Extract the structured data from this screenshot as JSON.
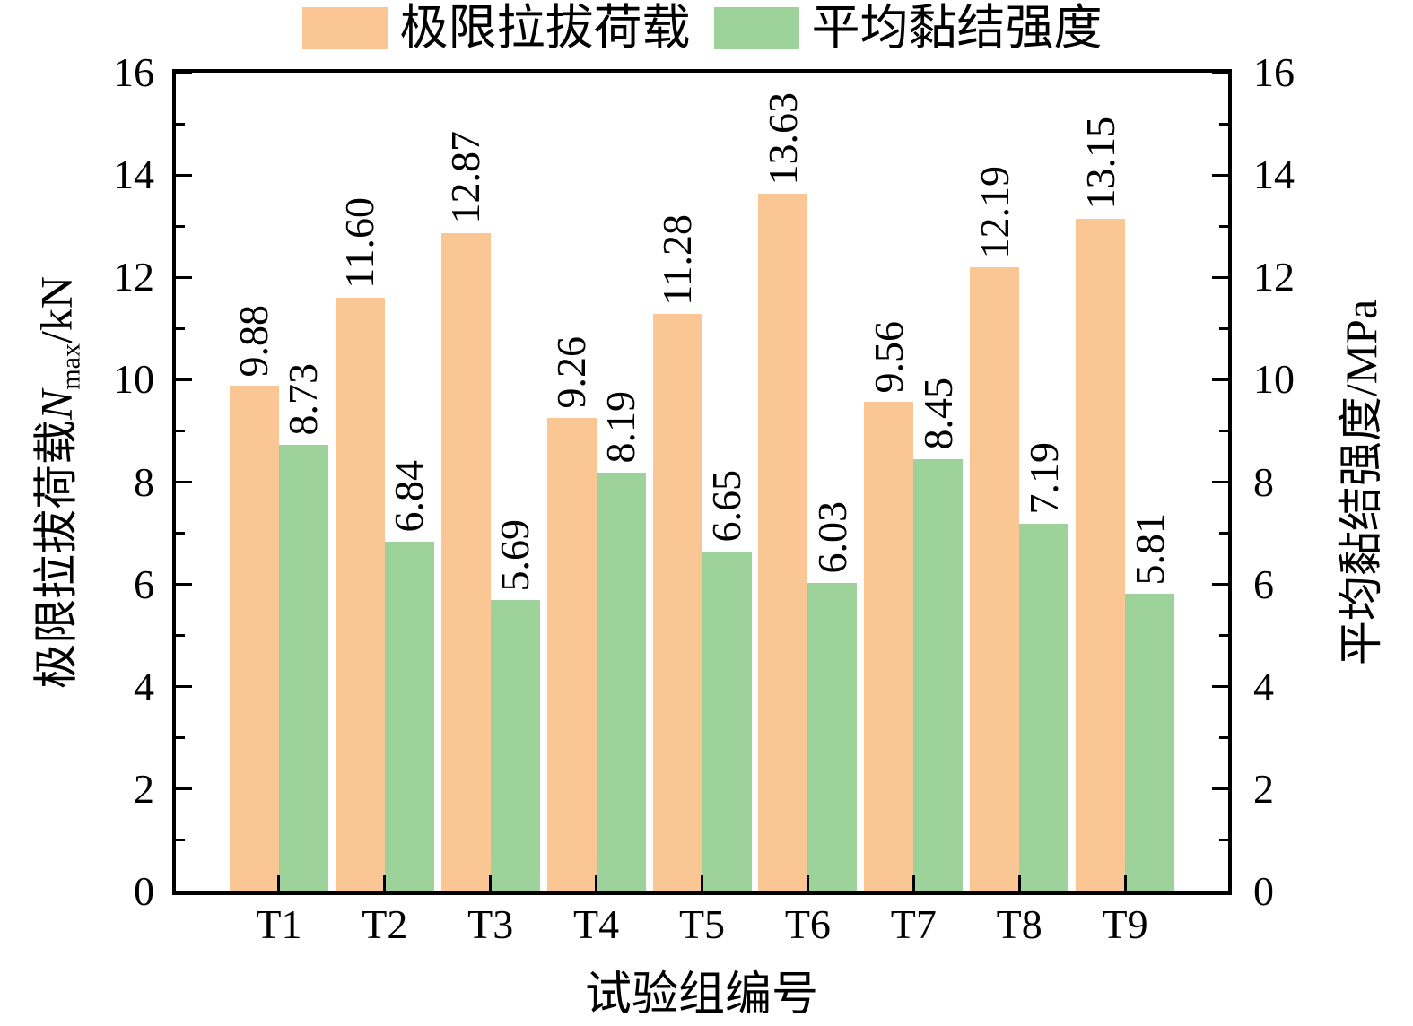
{
  "chart_data": {
    "type": "bar",
    "categories": [
      "T1",
      "T2",
      "T3",
      "T4",
      "T5",
      "T6",
      "T7",
      "T8",
      "T9"
    ],
    "series": [
      {
        "key": "pullout-load",
        "name": "极限拉拔荷载",
        "axis": "left",
        "unit": "kN",
        "color": "#FAC794",
        "values": [
          9.88,
          11.6,
          12.87,
          9.26,
          11.28,
          13.63,
          9.56,
          12.19,
          13.15
        ],
        "labels": [
          "9.88",
          "11.60",
          "12.87",
          "9.26",
          "11.28",
          "13.63",
          "9.56",
          "12.19",
          "13.15"
        ]
      },
      {
        "key": "bond-strength",
        "name": "平均黏结强度",
        "axis": "right",
        "unit": "MPa",
        "color": "#9DD29B",
        "values": [
          8.73,
          6.84,
          5.69,
          8.19,
          6.65,
          6.03,
          8.45,
          7.19,
          5.81
        ],
        "labels": [
          "8.73",
          "6.84",
          "5.69",
          "8.19",
          "6.65",
          "6.03",
          "8.45",
          "7.19",
          "5.81"
        ]
      }
    ],
    "xlabel": "试验组编号",
    "ylabel_left": "极限拉拔荷载N_max/kN",
    "ylabel_right": "平均黏结强度/MPa",
    "ylim": [
      0,
      16
    ],
    "yticks": [
      0,
      2,
      4,
      6,
      8,
      10,
      12,
      14,
      16
    ],
    "minor_tick_step": 1,
    "grid": false,
    "legend_position": "top center",
    "value_label_rotation": 90
  },
  "legend": {
    "items": [
      {
        "label": "极限拉拔荷载",
        "color": "#FAC794"
      },
      {
        "label": "平均黏结强度",
        "color": "#9DD29B"
      }
    ]
  },
  "axes": {
    "left_title": {
      "prefix": "极限拉拔荷载",
      "variable": "N",
      "subscript": "max",
      "unit": "/kN"
    },
    "right_title": "平均黏结强度/MPa",
    "x_title": "试验组编号"
  }
}
